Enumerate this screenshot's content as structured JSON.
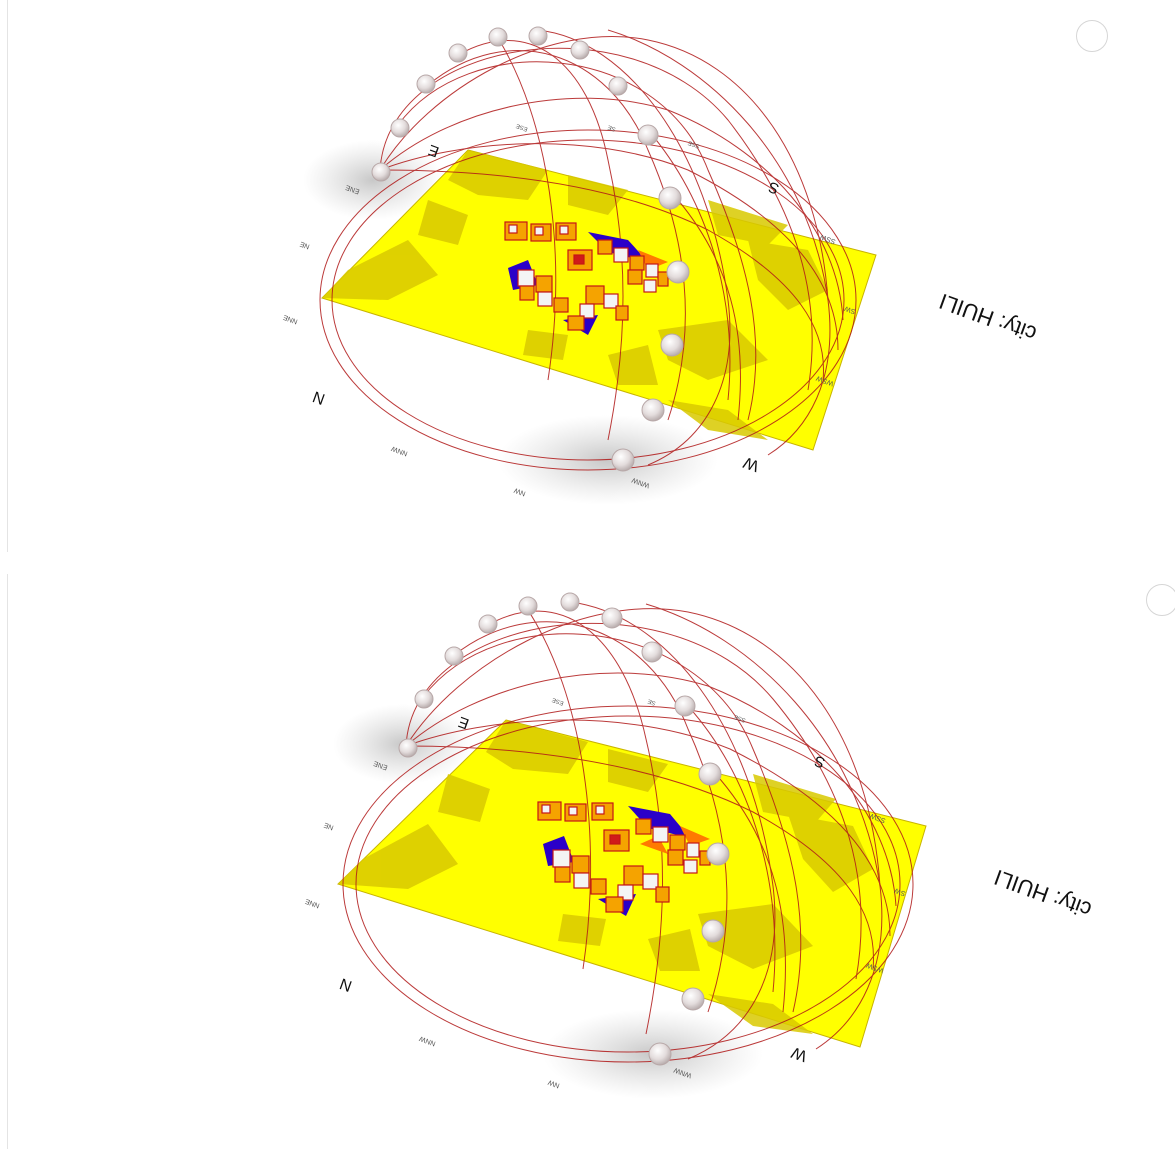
{
  "colors": {
    "ground_yellow": "#ffff00",
    "ground_shade": "#d9c900",
    "sunpath_line": "#b01818",
    "building_orange": "#f5a300",
    "building_red": "#d01a1a",
    "building_blue": "#2a00c8",
    "sun_marker": "#d8d0d0"
  },
  "panels": [
    {
      "city_label": "city: HUILI",
      "directions": {
        "N": "N",
        "E": "E",
        "S": "S",
        "W": "W",
        "NE": "NE",
        "NNE": "NNE",
        "ENE": "ENE",
        "NNW": "NNW",
        "NW": "NW",
        "WNW": "WNW",
        "WSW": "WSW",
        "SW": "SW",
        "SSW": "SSW",
        "ESE": "ESE",
        "SE": "SE",
        "SSE": "SSE"
      }
    },
    {
      "city_label": "city: HUILI",
      "directions": {
        "N": "N",
        "E": "E",
        "S": "S",
        "W": "W",
        "NE": "NE",
        "NNE": "NNE",
        "ENE": "ENE",
        "NNW": "NNW",
        "NW": "NW",
        "WNW": "WNW",
        "WSW": "WSW",
        "SW": "SW",
        "SSW": "SSW",
        "ESE": "ESE",
        "SE": "SE",
        "SSE": "SSE"
      }
    }
  ],
  "icons": {
    "corner_button": "circle-button-icon",
    "sun_marker": "sun-position-sphere-icon"
  }
}
